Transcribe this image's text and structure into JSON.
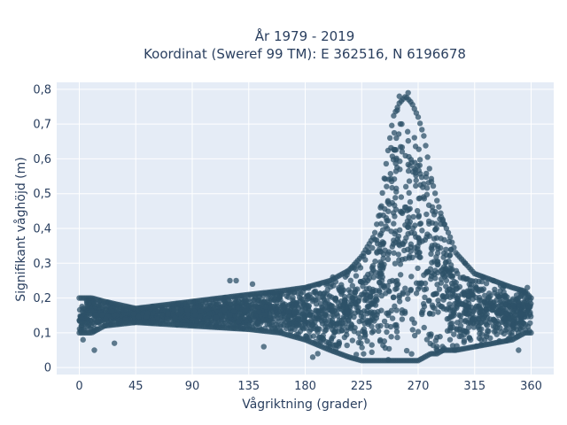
{
  "chart_data": {
    "type": "scatter",
    "title_line1": "År 1979 - 2019",
    "title_line2": "Koordinat (Sweref 99 TM): E 362516, N 6196678",
    "xlabel": "Vågriktning (grader)",
    "ylabel": "Signifikant våghöjd (m)",
    "xlim": [
      -18,
      378
    ],
    "ylim": [
      -0.02,
      0.82
    ],
    "x_ticks": [
      0,
      45,
      90,
      135,
      180,
      225,
      270,
      315,
      360
    ],
    "x_tick_labels": [
      "0",
      "45",
      "90",
      "135",
      "180",
      "225",
      "270",
      "315",
      "360"
    ],
    "y_ticks": [
      0,
      0.1,
      0.2,
      0.3,
      0.4,
      0.5,
      0.6,
      0.7,
      0.8
    ],
    "y_tick_labels": [
      "0",
      "0,1",
      "0,2",
      "0,3",
      "0,4",
      "0,5",
      "0,6",
      "0,7",
      "0,8"
    ],
    "grid": true,
    "marker_color": "#2e5268",
    "plot_background": "#e5ecf6",
    "envelope": {
      "x": [
        0,
        10,
        20,
        45,
        90,
        135,
        160,
        180,
        200,
        215,
        225,
        235,
        240,
        245,
        250,
        255,
        260,
        265,
        270,
        275,
        280,
        285,
        290,
        295,
        300,
        315,
        330,
        345,
        355,
        360
      ],
      "upper": [
        0.2,
        0.2,
        0.19,
        0.17,
        0.19,
        0.21,
        0.22,
        0.23,
        0.25,
        0.28,
        0.32,
        0.38,
        0.46,
        0.6,
        0.72,
        0.76,
        0.78,
        0.76,
        0.72,
        0.66,
        0.55,
        0.48,
        0.42,
        0.38,
        0.33,
        0.27,
        0.25,
        0.23,
        0.22,
        0.2
      ],
      "lower": [
        0.1,
        0.1,
        0.12,
        0.13,
        0.12,
        0.11,
        0.1,
        0.08,
        0.05,
        0.03,
        0.02,
        0.02,
        0.02,
        0.02,
        0.02,
        0.02,
        0.02,
        0.02,
        0.02,
        0.03,
        0.04,
        0.04,
        0.05,
        0.05,
        0.05,
        0.06,
        0.07,
        0.08,
        0.1,
        0.1
      ]
    },
    "outliers": [
      {
        "x": 12,
        "y": 0.05
      },
      {
        "x": 28,
        "y": 0.07
      },
      {
        "x": 120,
        "y": 0.25
      },
      {
        "x": 125,
        "y": 0.25
      },
      {
        "x": 138,
        "y": 0.24
      },
      {
        "x": 147,
        "y": 0.06
      },
      {
        "x": 186,
        "y": 0.03
      },
      {
        "x": 350,
        "y": 0.05
      },
      {
        "x": 357,
        "y": 0.23
      },
      {
        "x": 262,
        "y": 0.79
      },
      {
        "x": 255,
        "y": 0.78
      },
      {
        "x": 3,
        "y": 0.08
      },
      {
        "x": 190,
        "y": 0.04
      },
      {
        "x": 202,
        "y": 0.26
      },
      {
        "x": 330,
        "y": 0.25
      }
    ]
  }
}
